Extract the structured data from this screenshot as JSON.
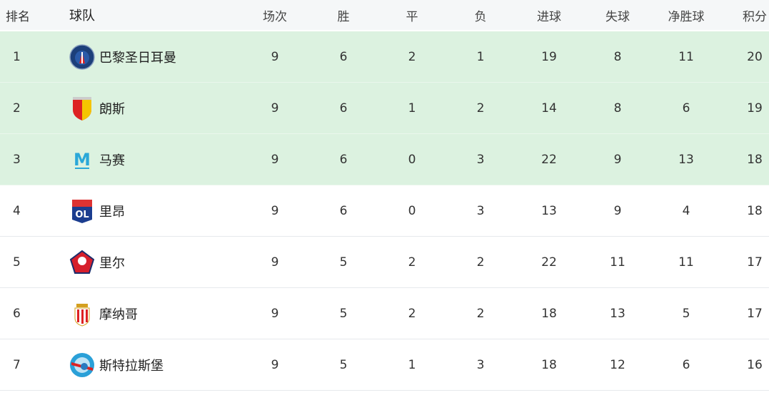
{
  "headers": {
    "rank": "排名",
    "team": "球队",
    "played": "场次",
    "won": "胜",
    "drawn": "平",
    "lost": "负",
    "gf": "进球",
    "ga": "失球",
    "gd": "净胜球",
    "pts": "积分"
  },
  "colors": {
    "header_bg": "#f5f7f8",
    "highlight_bg": "#dcf2e0"
  },
  "rows": [
    {
      "rank": "1",
      "team": "巴黎圣日耳曼",
      "logo": "psg-logo",
      "played": "9",
      "won": "6",
      "drawn": "2",
      "lost": "1",
      "gf": "19",
      "ga": "8",
      "gd": "11",
      "pts": "20",
      "highlight": true
    },
    {
      "rank": "2",
      "team": "朗斯",
      "logo": "lens-logo",
      "played": "9",
      "won": "6",
      "drawn": "1",
      "lost": "2",
      "gf": "14",
      "ga": "8",
      "gd": "6",
      "pts": "19",
      "highlight": true
    },
    {
      "rank": "3",
      "team": "马赛",
      "logo": "marseille-logo",
      "played": "9",
      "won": "6",
      "drawn": "0",
      "lost": "3",
      "gf": "22",
      "ga": "9",
      "gd": "13",
      "pts": "18",
      "highlight": true
    },
    {
      "rank": "4",
      "team": "里昂",
      "logo": "lyon-logo",
      "played": "9",
      "won": "6",
      "drawn": "0",
      "lost": "3",
      "gf": "13",
      "ga": "9",
      "gd": "4",
      "pts": "18",
      "highlight": false
    },
    {
      "rank": "5",
      "team": "里尔",
      "logo": "lille-logo",
      "played": "9",
      "won": "5",
      "drawn": "2",
      "lost": "2",
      "gf": "22",
      "ga": "11",
      "gd": "11",
      "pts": "17",
      "highlight": false
    },
    {
      "rank": "6",
      "team": "摩纳哥",
      "logo": "monaco-logo",
      "played": "9",
      "won": "5",
      "drawn": "2",
      "lost": "2",
      "gf": "18",
      "ga": "13",
      "gd": "5",
      "pts": "17",
      "highlight": false
    },
    {
      "rank": "7",
      "team": "斯特拉斯堡",
      "logo": "strasbourg-logo",
      "played": "9",
      "won": "5",
      "drawn": "1",
      "lost": "3",
      "gf": "18",
      "ga": "12",
      "gd": "6",
      "pts": "16",
      "highlight": false
    }
  ]
}
